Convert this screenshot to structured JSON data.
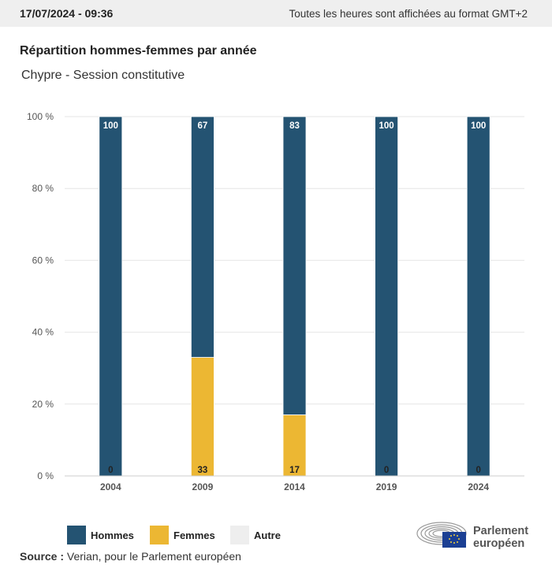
{
  "header": {
    "datetime": "17/07/2024 - 09:36",
    "timezone_note": "Toutes les heures sont affichées au format GMT+2"
  },
  "title": "Répartition hommes-femmes par année",
  "subtitle": "Chypre - Session constitutive",
  "colors": {
    "hommes": "#245372",
    "femmes": "#ecb733",
    "autre": "#eeeeee",
    "grid": "#e6e6e6"
  },
  "chart_data": {
    "type": "bar",
    "stacked": true,
    "categories": [
      "2004",
      "2009",
      "2014",
      "2019",
      "2024"
    ],
    "series": [
      {
        "name": "Hommes",
        "values": [
          100,
          67,
          83,
          100,
          100
        ]
      },
      {
        "name": "Femmes",
        "values": [
          0,
          33,
          17,
          0,
          0
        ]
      },
      {
        "name": "Autre",
        "values": [
          0,
          0,
          0,
          0,
          0
        ]
      }
    ],
    "ylim": [
      0,
      100
    ],
    "yticks": [
      "0 %",
      "20 %",
      "40 %",
      "60 %",
      "80 %",
      "100 %"
    ],
    "grid": true,
    "legend_position": "bottom-left"
  },
  "legend": {
    "hommes": "Hommes",
    "femmes": "Femmes",
    "autre": "Autre"
  },
  "source": {
    "label": "Source :",
    "text": "Verian, pour le Parlement européen"
  },
  "logo": {
    "line1": "Parlement",
    "line2": "européen"
  }
}
